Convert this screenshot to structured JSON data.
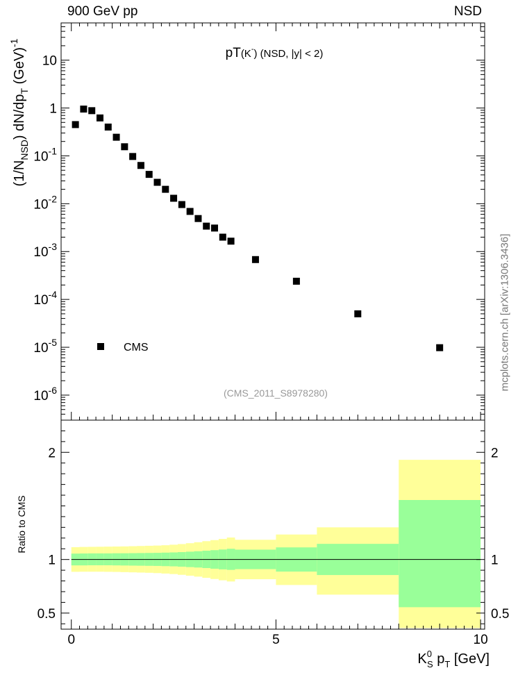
{
  "header": {
    "left": "900 GeV pp",
    "right": "NSD"
  },
  "side_label": "mcplots.cern.ch [arXiv:1306.3436]",
  "chart_data": [
    {
      "type": "scatter",
      "title": "pT(K̄) (NSD, |y| < 2)",
      "title_parts": {
        "main": "pT",
        "paren": "(K",
        "sup": "-",
        "rest": ") (NSD, |y| < 2)"
      },
      "ylabel": "(1/N_NSD) dN/dp_T (GeV)^-1",
      "ylabel_parts": {
        "a": "(1/N",
        "sub": "NSD",
        "b": ") dN/dp",
        "sub2": "T",
        "c": " (GeV)",
        "sup": "-1"
      },
      "yscale": "log",
      "ylim": [
        3e-07,
        60
      ],
      "xlim": [
        -0.25,
        10.1
      ],
      "ytick_labels": [
        {
          "base": "10",
          "exp": "-6",
          "value": 1e-06
        },
        {
          "base": "10",
          "exp": "-5",
          "value": 1e-05
        },
        {
          "base": "10",
          "exp": "-4",
          "value": 0.0001
        },
        {
          "base": "10",
          "exp": "-3",
          "value": 0.001
        },
        {
          "base": "10",
          "exp": "-2",
          "value": 0.01
        },
        {
          "base": "10",
          "exp": "-1",
          "value": 0.1
        },
        {
          "base": "1",
          "exp": "",
          "value": 1
        },
        {
          "base": "10",
          "exp": "",
          "value": 10
        }
      ],
      "legend": {
        "label": "CMS",
        "placement": "bottom-left"
      },
      "annotation": "(CMS_2011_S8978280)",
      "series": [
        {
          "name": "CMS",
          "x": [
            0.1,
            0.3,
            0.5,
            0.7,
            0.9,
            1.1,
            1.3,
            1.5,
            1.7,
            1.9,
            2.1,
            2.3,
            2.5,
            2.7,
            2.9,
            3.1,
            3.3,
            3.5,
            3.7,
            3.9,
            4.5,
            5.5,
            7.0,
            9.0
          ],
          "y": [
            0.45,
            0.95,
            0.88,
            0.62,
            0.4,
            0.245,
            0.155,
            0.097,
            0.063,
            0.041,
            0.028,
            0.02,
            0.013,
            0.0096,
            0.0069,
            0.0049,
            0.0034,
            0.0031,
            0.002,
            0.00165,
            0.00068,
            0.00024,
            5e-05,
            9.8e-06
          ]
        }
      ]
    },
    {
      "type": "area",
      "ylabel": "Ratio to CMS",
      "xlabel": "K_S^0 p_T [GeV]",
      "xlabel_parts": {
        "k": "K",
        "sup": "0",
        "sub": "S",
        "p": " p",
        "sub2": "T",
        "rest": " [GeV]"
      },
      "xlim": [
        -0.25,
        10.1
      ],
      "ylim": [
        0.35,
        2.3
      ],
      "xticks": [
        0,
        5,
        10
      ],
      "yticks": [
        0.5,
        1,
        2
      ],
      "ytick_labels": [
        "0.5",
        "1",
        "2"
      ],
      "xtick_labels": [
        "0",
        "5",
        "10"
      ],
      "reference_line": 1,
      "colors": {
        "inner_band": "#99ff99",
        "outer_band": "#ffff99"
      },
      "bands": [
        {
          "x0": 0.0,
          "x1": 0.2,
          "in_lo": 0.945,
          "in_hi": 1.055,
          "out_lo": 0.885,
          "out_hi": 1.115
        },
        {
          "x0": 0.2,
          "x1": 0.4,
          "in_lo": 0.945,
          "in_hi": 1.056,
          "out_lo": 0.886,
          "out_hi": 1.117
        },
        {
          "x0": 0.4,
          "x1": 0.6,
          "in_lo": 0.946,
          "in_hi": 1.057,
          "out_lo": 0.886,
          "out_hi": 1.118
        },
        {
          "x0": 0.6,
          "x1": 0.8,
          "in_lo": 0.946,
          "in_hi": 1.057,
          "out_lo": 0.886,
          "out_hi": 1.119
        },
        {
          "x0": 0.8,
          "x1": 1.0,
          "in_lo": 0.946,
          "in_hi": 1.057,
          "out_lo": 0.885,
          "out_hi": 1.12
        },
        {
          "x0": 1.0,
          "x1": 1.2,
          "in_lo": 0.945,
          "in_hi": 1.058,
          "out_lo": 0.884,
          "out_hi": 1.121
        },
        {
          "x0": 1.2,
          "x1": 1.4,
          "in_lo": 0.944,
          "in_hi": 1.058,
          "out_lo": 0.882,
          "out_hi": 1.122
        },
        {
          "x0": 1.4,
          "x1": 1.6,
          "in_lo": 0.943,
          "in_hi": 1.059,
          "out_lo": 0.88,
          "out_hi": 1.124
        },
        {
          "x0": 1.6,
          "x1": 1.8,
          "in_lo": 0.942,
          "in_hi": 1.06,
          "out_lo": 0.878,
          "out_hi": 1.126
        },
        {
          "x0": 1.8,
          "x1": 2.0,
          "in_lo": 0.941,
          "in_hi": 1.061,
          "out_lo": 0.876,
          "out_hi": 1.128
        },
        {
          "x0": 2.0,
          "x1": 2.2,
          "in_lo": 0.94,
          "in_hi": 1.062,
          "out_lo": 0.873,
          "out_hi": 1.13
        },
        {
          "x0": 2.2,
          "x1": 2.4,
          "in_lo": 0.938,
          "in_hi": 1.064,
          "out_lo": 0.869,
          "out_hi": 1.133
        },
        {
          "x0": 2.4,
          "x1": 2.6,
          "in_lo": 0.936,
          "in_hi": 1.066,
          "out_lo": 0.864,
          "out_hi": 1.138
        },
        {
          "x0": 2.6,
          "x1": 2.8,
          "in_lo": 0.933,
          "in_hi": 1.069,
          "out_lo": 0.857,
          "out_hi": 1.144
        },
        {
          "x0": 2.8,
          "x1": 3.0,
          "in_lo": 0.929,
          "in_hi": 1.073,
          "out_lo": 0.849,
          "out_hi": 1.152
        },
        {
          "x0": 3.0,
          "x1": 3.2,
          "in_lo": 0.925,
          "in_hi": 1.077,
          "out_lo": 0.84,
          "out_hi": 1.161
        },
        {
          "x0": 3.2,
          "x1": 3.4,
          "in_lo": 0.92,
          "in_hi": 1.082,
          "out_lo": 0.829,
          "out_hi": 1.171
        },
        {
          "x0": 3.4,
          "x1": 3.6,
          "in_lo": 0.914,
          "in_hi": 1.087,
          "out_lo": 0.818,
          "out_hi": 1.181
        },
        {
          "x0": 3.6,
          "x1": 3.8,
          "in_lo": 0.908,
          "in_hi": 1.093,
          "out_lo": 0.806,
          "out_hi": 1.192
        },
        {
          "x0": 3.8,
          "x1": 4.0,
          "in_lo": 0.903,
          "in_hi": 1.1,
          "out_lo": 0.795,
          "out_hi": 1.205
        },
        {
          "x0": 4.0,
          "x1": 5.0,
          "in_lo": 0.91,
          "in_hi": 1.092,
          "out_lo": 0.816,
          "out_hi": 1.184
        },
        {
          "x0": 5.0,
          "x1": 6.0,
          "in_lo": 0.887,
          "in_hi": 1.113,
          "out_lo": 0.762,
          "out_hi": 1.233
        },
        {
          "x0": 6.0,
          "x1": 8.0,
          "in_lo": 0.855,
          "in_hi": 1.146,
          "out_lo": 0.672,
          "out_hi": 1.3
        },
        {
          "x0": 8.0,
          "x1": 10.0,
          "in_lo": 0.555,
          "in_hi": 1.555,
          "out_lo": 0.36,
          "out_hi": 1.93
        }
      ]
    }
  ]
}
